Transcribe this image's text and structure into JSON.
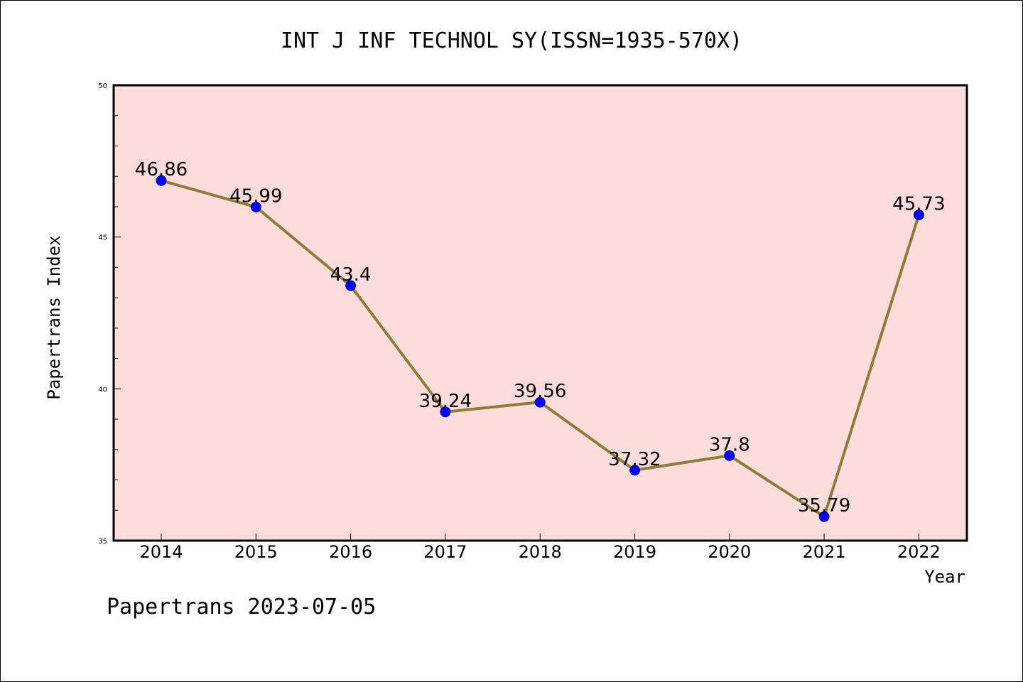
{
  "chart_data": {
    "type": "line",
    "title": "INT J INF TECHNOL SY(ISSN=1935-570X)",
    "xlabel": "Year",
    "ylabel": "Papertrans Index",
    "categories": [
      "2014",
      "2015",
      "2016",
      "2017",
      "2018",
      "2019",
      "2020",
      "2021",
      "2022"
    ],
    "values": [
      46.86,
      45.99,
      43.4,
      39.24,
      39.56,
      37.32,
      37.8,
      35.79,
      45.73
    ],
    "value_labels": [
      "46.86",
      "45.99",
      "43.4",
      "39.24",
      "39.56",
      "37.32",
      "37.8",
      "35.79",
      "45.73"
    ],
    "ylim": [
      35,
      50
    ],
    "yticks": [
      "35",
      "40",
      "45",
      "50"
    ],
    "grid": false,
    "plot_background": "#ffdcdc",
    "line_color": "#8b7d3a",
    "marker_color": "#0000ff"
  },
  "footer": "Papertrans 2023-07-05"
}
